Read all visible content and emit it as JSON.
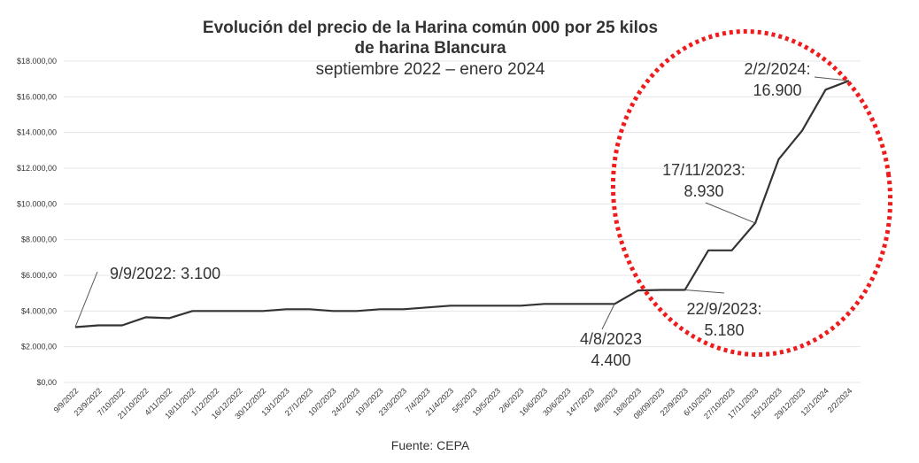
{
  "chart_data": {
    "type": "line",
    "title_line1": "Evolución del precio de la Harina común 000 por 25 kilos",
    "title_line2": "de harina Blancura",
    "subtitle": "septiembre 2022 – enero 2024",
    "source": "Fuente: CEPA",
    "ylim": [
      0,
      18000
    ],
    "y_tick_labels": [
      "$0,00",
      "$2.000,00",
      "$4.000,00",
      "$6.000,00",
      "$8.000,00",
      "$10.000,00",
      "$12.000,00",
      "$14.000,00",
      "$16.000,00",
      "$18.000,00"
    ],
    "x": [
      "9/9/2022",
      "23/9/2022",
      "7/10/2022",
      "21/10/2022",
      "4/11/2022",
      "18/11/2022",
      "1/12/2022",
      "16/12/2022",
      "30/12/2022",
      "13/1/2023",
      "27/1/2023",
      "10/2/2023",
      "24/2/2023",
      "10/3/2023",
      "23/3/2023",
      "7/4/2023",
      "21/4/2023",
      "5/5/2023",
      "19/5/2023",
      "2/6/2023",
      "16/6/2023",
      "30/6/2023",
      "14/7/2023",
      "4/8/2023",
      "18/8/2023",
      "08/09/2023",
      "22/9/2023",
      "6/10/2023",
      "27/10/2023",
      "17/11/2023",
      "15/12/2023",
      "29/12/2023",
      "12/1/2024",
      "2/2/2024"
    ],
    "values": [
      3100,
      3200,
      3200,
      3650,
      3600,
      4000,
      4000,
      4000,
      4000,
      4100,
      4100,
      4000,
      4000,
      4100,
      4100,
      4200,
      4300,
      4300,
      4300,
      4300,
      4400,
      4400,
      4400,
      4400,
      5150,
      5180,
      5180,
      7400,
      7400,
      8930,
      12500,
      14100,
      16400,
      16900
    ],
    "line_color": "#333333",
    "highlight_color": "#ee1c1c",
    "grid": true,
    "annotations": [
      {
        "line1": "9/9/2022: 3.100",
        "line2": "",
        "point": "9/9/2022"
      },
      {
        "line1": "4/8/2023",
        "line2": "4.400",
        "point": "4/8/2023"
      },
      {
        "line1": "22/9/2023:",
        "line2": "5.180",
        "point": "22/9/2023"
      },
      {
        "line1": "17/11/2023:",
        "line2": "8.930",
        "point": "17/11/2023"
      },
      {
        "line1": "2/2/2024:",
        "line2": "16.900",
        "point": "2/2/2024"
      }
    ]
  }
}
